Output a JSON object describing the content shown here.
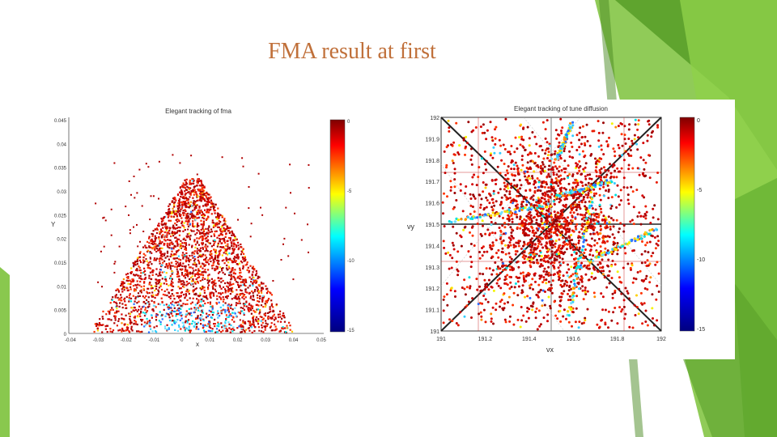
{
  "slide": {
    "title": "FMA result at first"
  },
  "colors": {
    "accent_green": "#7cc23b",
    "accent_green_dark": "#5aa02a",
    "title_color": "#c0703a"
  },
  "left_plot": {
    "title": "Elegant tracking of fma",
    "xlabel": "x",
    "ylabel": "Y",
    "x_ticks": [
      "-0.04",
      "-0.03",
      "-0.02",
      "-0.01",
      "0",
      "0.01",
      "0.02",
      "0.03",
      "0.04",
      "0.05"
    ],
    "y_ticks": [
      "0.045",
      "0.04",
      "0.035",
      "0.03",
      "0.025",
      "0.02",
      "0.015",
      "0.01",
      "0.005",
      "0"
    ],
    "colorbar_ticks": [
      "0",
      "-5",
      "-10",
      "-15"
    ]
  },
  "right_plot": {
    "title": "Elegant tracking of tune diffusion",
    "xlabel": "νx",
    "ylabel": "νy",
    "x_ticks": [
      "191",
      "191.2",
      "191.4",
      "191.6",
      "191.8",
      "192"
    ],
    "y_ticks": [
      "192",
      "191.9",
      "191.8",
      "191.7",
      "191.6",
      "191.5",
      "191.4",
      "191.3",
      "191.2",
      "191.1",
      "191"
    ],
    "colorbar_ticks": [
      "0",
      "-5",
      "-10",
      "-15"
    ]
  }
}
